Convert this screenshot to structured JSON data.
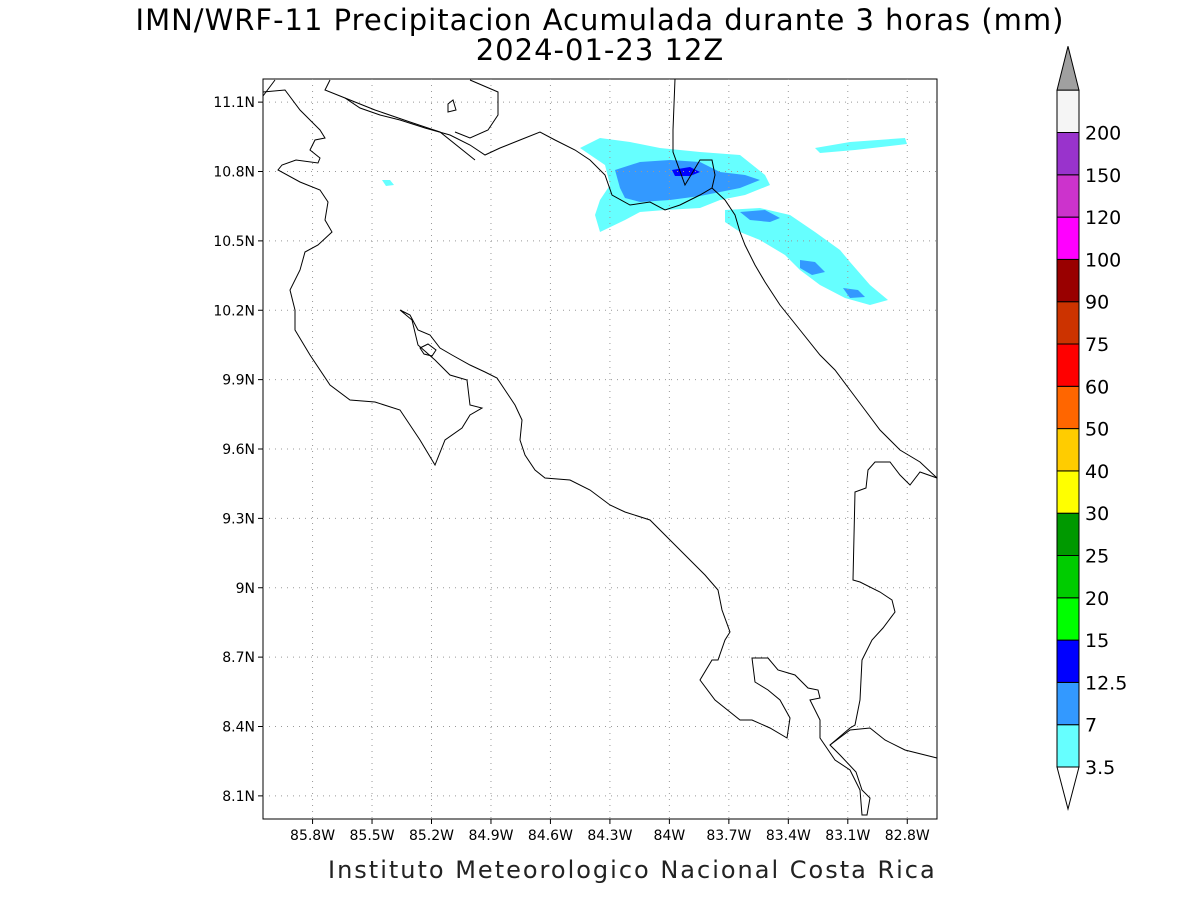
{
  "title": {
    "line1": "IMN/WRF-11 Precipitacion Acumulada durante 3 horas (mm)",
    "line2": "2024-01-23 12Z"
  },
  "footer": "Instituto Meteorologico Nacional Costa Rica",
  "map": {
    "lon_range": [
      -86.05,
      -82.65
    ],
    "lat_range": [
      8.0,
      11.2
    ],
    "lon_ticks": [
      {
        "value": -85.8,
        "label": "85.8W"
      },
      {
        "value": -85.5,
        "label": "85.5W"
      },
      {
        "value": -85.2,
        "label": "85.2W"
      },
      {
        "value": -84.9,
        "label": "84.9W"
      },
      {
        "value": -84.6,
        "label": "84.6W"
      },
      {
        "value": -84.3,
        "label": "84.3W"
      },
      {
        "value": -84.0,
        "label": "84W"
      },
      {
        "value": -83.7,
        "label": "83.7W"
      },
      {
        "value": -83.4,
        "label": "83.4W"
      },
      {
        "value": -83.1,
        "label": "83.1W"
      },
      {
        "value": -82.8,
        "label": "82.8W"
      }
    ],
    "lat_ticks": [
      {
        "value": 11.1,
        "label": "11.1N"
      },
      {
        "value": 10.8,
        "label": "10.8N"
      },
      {
        "value": 10.5,
        "label": "10.5N"
      },
      {
        "value": 10.2,
        "label": "10.2N"
      },
      {
        "value": 9.9,
        "label": "9.9N"
      },
      {
        "value": 9.6,
        "label": "9.6N"
      },
      {
        "value": 9.3,
        "label": "9.3N"
      },
      {
        "value": 9.0,
        "label": "9N"
      },
      {
        "value": 8.7,
        "label": "8.7N"
      },
      {
        "value": 8.4,
        "label": "8.4N"
      },
      {
        "value": 8.1,
        "label": "8.1N"
      }
    ],
    "grid": true,
    "precip_areas": [
      {
        "level": "3.5-7",
        "color": "#66ffff",
        "centers": [
          [
            -83.75,
            10.88
          ],
          [
            -83.45,
            10.65
          ],
          [
            -83.15,
            10.45
          ],
          [
            -84.0,
            10.95
          ],
          [
            -82.95,
            11.03
          ]
        ]
      },
      {
        "level": "7-12.5",
        "color": "#3399ff",
        "centers": [
          [
            -83.8,
            10.87
          ],
          [
            -83.55,
            10.84
          ],
          [
            -83.25,
            10.4
          ],
          [
            -82.95,
            10.33
          ]
        ]
      },
      {
        "level": "12.5-15",
        "color": "#0000ff",
        "centers": [
          [
            -83.75,
            10.88
          ]
        ]
      }
    ]
  },
  "colorbar": {
    "levels": [
      {
        "label": "3.5",
        "color": "#66ffff"
      },
      {
        "label": "7",
        "color": "#3399ff"
      },
      {
        "label": "12.5",
        "color": "#0000ff"
      },
      {
        "label": "15",
        "color": "#00ff00"
      },
      {
        "label": "20",
        "color": "#00cc00"
      },
      {
        "label": "25",
        "color": "#009900"
      },
      {
        "label": "30",
        "color": "#ffff00"
      },
      {
        "label": "40",
        "color": "#ffcc00"
      },
      {
        "label": "50",
        "color": "#ff6600"
      },
      {
        "label": "60",
        "color": "#ff0000"
      },
      {
        "label": "75",
        "color": "#cc3300"
      },
      {
        "label": "90",
        "color": "#990000"
      },
      {
        "label": "100",
        "color": "#ff00ff"
      },
      {
        "label": "120",
        "color": "#cc33cc"
      },
      {
        "label": "150",
        "color": "#9933cc"
      },
      {
        "label": "200",
        "color": "#f5f5f5"
      }
    ],
    "top_arrow_color": "#a0a0a0",
    "bottom_arrow_color": "#ffffff"
  }
}
